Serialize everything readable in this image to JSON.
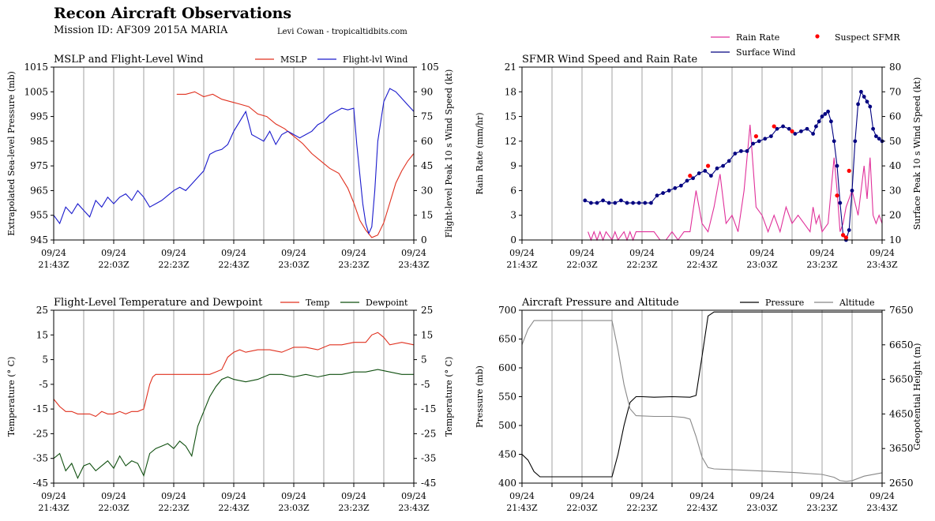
{
  "header": {
    "title": "Recon Aircraft Observations",
    "mission": "Mission ID: AF309 2015A MARIA",
    "credit": "Levi Cowan - tropicaltidbits.com"
  },
  "x_ticks": [
    {
      "date": "09/24",
      "time": "21:43Z"
    },
    {
      "date": "09/24",
      "time": "22:03Z"
    },
    {
      "date": "09/24",
      "time": "22:23Z"
    },
    {
      "date": "09/24",
      "time": "22:43Z"
    },
    {
      "date": "09/24",
      "time": "23:03Z"
    },
    {
      "date": "09/24",
      "time": "23:23Z"
    },
    {
      "date": "09/24",
      "time": "23:43Z"
    }
  ],
  "colors": {
    "mslp": "#e0301e",
    "wind": "#1a1acc",
    "rain": "#e0309a",
    "surface": "#000080",
    "suspect": "#ff0000",
    "temp": "#e0301e",
    "dewpoint": "#0f4f0f",
    "pressure": "#000000",
    "altitude": "#888888",
    "grid": "#a0a0a0"
  },
  "chart_data": [
    {
      "id": "mslp-wind",
      "type": "line",
      "title": "MSLP and Flight-Level Wind",
      "ylabel": "Extrapolated Sea-level Pressure (mb)",
      "y2label": "Flight-level Peak 10 s Wind Speed (kt)",
      "ylim": [
        945,
        1015
      ],
      "y2lim": [
        0,
        105
      ],
      "yticks": [
        "945",
        "955",
        "965",
        "975",
        "985",
        "995",
        "1005",
        "1015"
      ],
      "y2ticks": [
        "0",
        "15",
        "30",
        "45",
        "60",
        "75",
        "90",
        "105"
      ],
      "legend": [
        "MSLP",
        "Flight-lvl Wind"
      ],
      "xlim": [
        0,
        120
      ],
      "series": [
        {
          "name": "MSLP",
          "axis": "left",
          "color_key": "mslp",
          "x": [
            41,
            44,
            47,
            50,
            53,
            56,
            59,
            62,
            65,
            68,
            71,
            74,
            77,
            80,
            83,
            86,
            89,
            92,
            95,
            98,
            100,
            102,
            104,
            106,
            108,
            110,
            112,
            114,
            116,
            118,
            120
          ],
          "y": [
            1004,
            1004,
            1005,
            1003,
            1004,
            1002,
            1001,
            1000,
            999,
            996,
            995,
            992,
            990,
            987,
            984,
            980,
            977,
            974,
            972,
            966,
            960,
            953,
            949,
            946,
            947,
            952,
            960,
            968,
            973,
            977,
            980
          ]
        },
        {
          "name": "Flight-lvl Wind",
          "axis": "right",
          "color_key": "wind",
          "x": [
            0,
            2,
            4,
            6,
            8,
            10,
            12,
            14,
            16,
            18,
            20,
            22,
            24,
            26,
            28,
            30,
            32,
            34,
            36,
            38,
            40,
            42,
            44,
            46,
            48,
            50,
            52,
            54,
            56,
            58,
            60,
            62,
            64,
            66,
            68,
            70,
            72,
            74,
            76,
            78,
            80,
            82,
            84,
            86,
            88,
            90,
            92,
            94,
            96,
            98,
            100,
            101,
            102,
            103,
            104,
            105,
            106,
            107,
            108,
            110,
            112,
            114,
            116,
            118,
            120
          ],
          "y": [
            15,
            10,
            20,
            16,
            22,
            18,
            14,
            24,
            20,
            26,
            22,
            26,
            28,
            24,
            30,
            26,
            20,
            22,
            24,
            27,
            30,
            32,
            30,
            34,
            38,
            42,
            52,
            54,
            55,
            58,
            66,
            72,
            78,
            64,
            62,
            60,
            66,
            58,
            64,
            66,
            64,
            62,
            64,
            66,
            70,
            72,
            76,
            78,
            80,
            79,
            80,
            58,
            40,
            22,
            10,
            4,
            8,
            30,
            60,
            84,
            92,
            90,
            86,
            82,
            78
          ]
        }
      ]
    },
    {
      "id": "sfmr",
      "type": "line",
      "title": "SFMR Wind Speed and Rain Rate",
      "ylabel": "Rain Rate (mm/hr)",
      "y2label": "Surface Peak 10 s Wind Speed (kt)",
      "ylim": [
        0,
        21
      ],
      "y2lim": [
        10,
        80
      ],
      "yticks": [
        "0",
        "3",
        "6",
        "9",
        "12",
        "15",
        "18",
        "21"
      ],
      "y2ticks": [
        "10",
        "20",
        "30",
        "40",
        "50",
        "60",
        "70",
        "80"
      ],
      "legend": [
        "Rain Rate",
        "Surface Wind",
        "Suspect SFMR"
      ],
      "xlim": [
        0,
        120
      ],
      "series": [
        {
          "name": "Rain Rate",
          "axis": "left",
          "color_key": "rain",
          "x": [
            22,
            23,
            24,
            25,
            26,
            27,
            28,
            30,
            31,
            32,
            34,
            35,
            36,
            37,
            38,
            40,
            42,
            44,
            46,
            48,
            50,
            52,
            54,
            56,
            58,
            60,
            62,
            64,
            66,
            68,
            70,
            72,
            74,
            76,
            78,
            80,
            82,
            84,
            86,
            88,
            90,
            92,
            94,
            96,
            97,
            98,
            99,
            100,
            102,
            104,
            105,
            106,
            107,
            108,
            110,
            112,
            114,
            115,
            116,
            117,
            118,
            119,
            120
          ],
          "y": [
            1,
            0,
            1,
            0,
            1,
            0,
            1,
            0,
            1,
            0,
            1,
            0,
            1,
            0,
            1,
            1,
            1,
            1,
            0,
            0,
            1,
            0,
            1,
            1,
            6,
            2,
            1,
            4,
            8,
            2,
            3,
            1,
            6,
            14,
            4,
            3,
            1,
            3,
            1,
            4,
            2,
            3,
            2,
            1,
            4,
            2,
            3,
            1,
            2,
            10,
            6,
            1,
            2,
            4,
            6,
            3,
            9,
            5,
            10,
            3,
            2,
            3,
            2
          ]
        },
        {
          "name": "Surface Wind",
          "axis": "right",
          "color_key": "surface",
          "x": [
            21,
            23,
            25,
            27,
            29,
            31,
            33,
            35,
            37,
            39,
            41,
            43,
            45,
            47,
            49,
            51,
            53,
            55,
            57,
            59,
            61,
            63,
            65,
            67,
            69,
            71,
            73,
            75,
            77,
            79,
            81,
            83,
            85,
            87,
            89,
            91,
            93,
            95,
            97,
            98,
            99,
            100,
            101,
            102,
            103,
            104,
            105,
            106,
            107,
            108,
            109,
            110,
            111,
            112,
            113,
            114,
            115,
            116,
            117,
            118,
            119,
            120
          ],
          "y": [
            26,
            25,
            25,
            26,
            25,
            25,
            26,
            25,
            25,
            25,
            25,
            25,
            28,
            29,
            30,
            31,
            32,
            34,
            35,
            37,
            38,
            36,
            39,
            40,
            42,
            45,
            46,
            46,
            49,
            50,
            51,
            52,
            55,
            56,
            55,
            53,
            54,
            55,
            53,
            56,
            58,
            60,
            61,
            62,
            58,
            50,
            40,
            25,
            12,
            10,
            14,
            30,
            50,
            65,
            70,
            68,
            66,
            64,
            55,
            52,
            51,
            50
          ]
        },
        {
          "name": "Suspect SFMR",
          "axis": "right",
          "color_key": "suspect",
          "marker": "point",
          "x": [
            56,
            62,
            78,
            84,
            90,
            105,
            107,
            108,
            109
          ],
          "y": [
            36,
            40,
            52,
            56,
            54,
            28,
            12,
            11,
            38
          ]
        }
      ]
    },
    {
      "id": "temp-dew",
      "type": "line",
      "title": "Flight-Level Temperature and Dewpoint",
      "ylabel": "Temperature (° C)",
      "y2label": "Temperature (° C)",
      "ylim": [
        -45,
        25
      ],
      "y2lim": [
        -45,
        25
      ],
      "yticks": [
        "-45",
        "-35",
        "-25",
        "-15",
        "-5",
        "5",
        "15",
        "25"
      ],
      "y2ticks": [
        "-45",
        "-35",
        "-25",
        "-15",
        "-5",
        "5",
        "15",
        "25"
      ],
      "legend": [
        "Temp",
        "Dewpoint"
      ],
      "xlim": [
        0,
        120
      ],
      "series": [
        {
          "name": "Temp",
          "axis": "left",
          "color_key": "temp",
          "x": [
            0,
            2,
            4,
            6,
            8,
            10,
            12,
            14,
            16,
            18,
            20,
            22,
            24,
            26,
            28,
            30,
            31,
            32,
            33,
            34,
            36,
            40,
            44,
            48,
            52,
            54,
            56,
            58,
            60,
            62,
            64,
            68,
            72,
            76,
            80,
            84,
            88,
            92,
            96,
            100,
            104,
            106,
            108,
            110,
            112,
            116,
            120
          ],
          "y": [
            -11,
            -14,
            -16,
            -16,
            -17,
            -17,
            -17,
            -18,
            -16,
            -17,
            -17,
            -16,
            -17,
            -16,
            -16,
            -15,
            -10,
            -5,
            -2,
            -1,
            -1,
            -1,
            -1,
            -1,
            -1,
            0,
            1,
            6,
            8,
            9,
            8,
            9,
            9,
            8,
            10,
            10,
            9,
            11,
            11,
            12,
            12,
            15,
            16,
            14,
            11,
            12,
            11
          ]
        },
        {
          "name": "Dewpoint",
          "axis": "left",
          "color_key": "dewpoint",
          "x": [
            0,
            2,
            4,
            6,
            8,
            10,
            12,
            14,
            16,
            18,
            20,
            22,
            24,
            26,
            28,
            30,
            32,
            34,
            36,
            38,
            40,
            42,
            44,
            46,
            48,
            50,
            52,
            54,
            56,
            58,
            60,
            64,
            68,
            72,
            76,
            80,
            84,
            88,
            92,
            96,
            100,
            104,
            108,
            112,
            116,
            120
          ],
          "y": [
            -35,
            -33,
            -40,
            -37,
            -43,
            -38,
            -37,
            -40,
            -38,
            -36,
            -39,
            -34,
            -38,
            -36,
            -37,
            -42,
            -33,
            -31,
            -30,
            -29,
            -31,
            -28,
            -30,
            -34,
            -22,
            -16,
            -10,
            -6,
            -3,
            -2,
            -3,
            -4,
            -3,
            -1,
            -1,
            -2,
            -1,
            -2,
            -1,
            -1,
            0,
            0,
            1,
            0,
            -1,
            -1
          ]
        }
      ]
    },
    {
      "id": "pressure-altitude",
      "type": "line",
      "title": "Aircraft Pressure and Altitude",
      "ylabel": "Pressure (mb)",
      "y2label": "Geopotential Height (m)",
      "ylim": [
        400,
        700
      ],
      "y2lim": [
        2650,
        7650
      ],
      "yticks": [
        "400",
        "450",
        "500",
        "550",
        "600",
        "650",
        "700"
      ],
      "y2ticks": [
        "2650",
        "3650",
        "4650",
        "5650",
        "6650",
        "7650"
      ],
      "legend": [
        "Pressure",
        "Altitude"
      ],
      "xlim": [
        0,
        120
      ],
      "series": [
        {
          "name": "Pressure",
          "axis": "left",
          "color_key": "pressure",
          "x": [
            0,
            2,
            4,
            6,
            8,
            10,
            20,
            30,
            32,
            34,
            36,
            38,
            40,
            44,
            50,
            56,
            58,
            60,
            62,
            64,
            66,
            80,
            100,
            120
          ],
          "y": [
            450,
            440,
            420,
            411,
            411,
            411,
            411,
            411,
            450,
            500,
            540,
            550,
            550,
            549,
            550,
            549,
            552,
            620,
            690,
            697,
            697,
            697,
            697,
            697
          ]
        },
        {
          "name": "Altitude",
          "axis": "right",
          "color_key": "altitude",
          "x": [
            0,
            2,
            4,
            6,
            10,
            20,
            30,
            32,
            34,
            36,
            38,
            44,
            50,
            54,
            56,
            58,
            60,
            62,
            64,
            70,
            80,
            90,
            100,
            104,
            106,
            108,
            110,
            114,
            120
          ],
          "y": [
            6650,
            7100,
            7350,
            7350,
            7350,
            7350,
            7350,
            6500,
            5500,
            4800,
            4600,
            4580,
            4580,
            4550,
            4500,
            4000,
            3400,
            3100,
            3060,
            3040,
            3000,
            2960,
            2900,
            2820,
            2720,
            2700,
            2720,
            2850,
            2950
          ]
        }
      ]
    }
  ]
}
